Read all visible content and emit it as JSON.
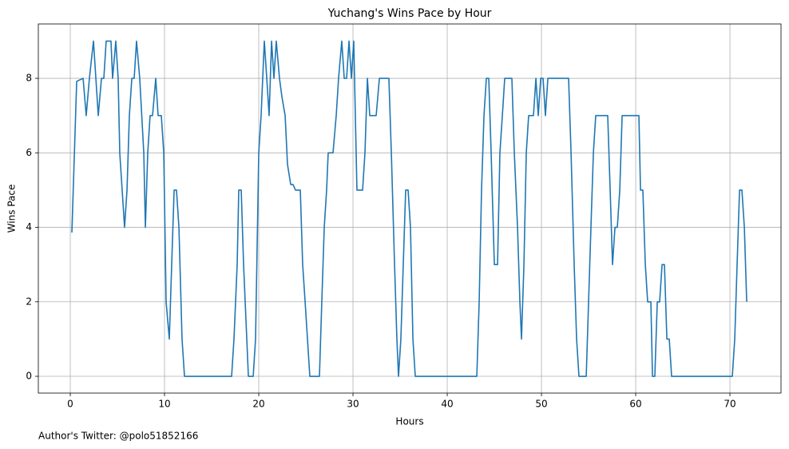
{
  "chart_data": {
    "type": "line",
    "title": "Yuchang's Wins Pace by Hour",
    "x_label": "Hours",
    "y_label": "Wins Pace",
    "footnote": "Author's Twitter: @polo51852166",
    "color": "#1f77b4",
    "grid": true,
    "x": [
      0.17,
      0.68,
      1.36,
      1.69,
      2.03,
      2.46,
      2.97,
      3.31,
      3.56,
      3.81,
      4.32,
      4.49,
      4.83,
      5.08,
      5.25,
      5.76,
      6.02,
      6.27,
      6.53,
      6.78,
      7.03,
      7.37,
      7.8,
      7.97,
      8.22,
      8.47,
      8.73,
      9.07,
      9.32,
      9.66,
      9.92,
      10.17,
      10.51,
      10.76,
      11.02,
      11.27,
      11.53,
      11.86,
      12.12,
      17.12,
      17.37,
      17.71,
      17.88,
      18.14,
      18.39,
      18.73,
      18.9,
      19.41,
      19.66,
      20.0,
      20.25,
      20.59,
      20.85,
      21.1,
      21.36,
      21.61,
      21.86,
      22.2,
      22.46,
      22.8,
      23.05,
      23.39,
      23.64,
      23.9,
      24.41,
      24.66,
      24.92,
      25.17,
      25.42,
      26.44,
      26.69,
      26.95,
      27.2,
      27.37,
      27.88,
      28.22,
      28.47,
      28.81,
      29.07,
      29.32,
      29.58,
      29.83,
      30.08,
      30.42,
      31.02,
      31.27,
      31.53,
      31.78,
      32.46,
      32.8,
      33.81,
      34.07,
      34.41,
      34.66,
      34.83,
      35.08,
      35.59,
      35.85,
      36.1,
      36.36,
      36.61,
      43.14,
      43.39,
      43.64,
      43.9,
      44.15,
      44.41,
      44.66,
      45.0,
      45.34,
      45.59,
      45.85,
      46.1,
      46.86,
      47.12,
      47.46,
      47.71,
      47.88,
      48.14,
      48.39,
      48.64,
      49.15,
      49.41,
      49.66,
      49.92,
      50.17,
      50.42,
      50.68,
      52.88,
      53.14,
      53.47,
      53.73,
      53.98,
      54.75,
      55.0,
      55.25,
      55.51,
      55.76,
      57.03,
      57.29,
      57.54,
      57.8,
      58.05,
      58.31,
      58.56,
      60.34,
      60.51,
      60.76,
      61.02,
      61.27,
      61.61,
      61.78,
      62.03,
      62.29,
      62.54,
      62.8,
      63.05,
      63.31,
      63.56,
      63.81,
      70.25,
      70.51,
      70.76,
      71.02,
      71.27,
      71.53,
      71.78
    ],
    "values": [
      3.86,
      7.92,
      8,
      7,
      8,
      9,
      7,
      8,
      8,
      9,
      9,
      8,
      9,
      8,
      6,
      4,
      5,
      7,
      8,
      8,
      9,
      8,
      6,
      4,
      6,
      7,
      7,
      8,
      7,
      7,
      6,
      2,
      1,
      3,
      5,
      5,
      4,
      1,
      0,
      0,
      1,
      3,
      5,
      5,
      3,
      1,
      0,
      0,
      1,
      6,
      7,
      9,
      8,
      7,
      9,
      8,
      9,
      8,
      7.5,
      7,
      5.69,
      5.15,
      5.15,
      5,
      5,
      3,
      2,
      1,
      0,
      0,
      2,
      4,
      5,
      6,
      6,
      7,
      8,
      9,
      8,
      8,
      9,
      8,
      9,
      5,
      5,
      6,
      8,
      7,
      7,
      8,
      8,
      6,
      3,
      1,
      0,
      1,
      5,
      5,
      4,
      1,
      0,
      0,
      2,
      5,
      7,
      8,
      8,
      6,
      3,
      3,
      6,
      7,
      8,
      8,
      6,
      4,
      2,
      1,
      3,
      6,
      7,
      7,
      8,
      7,
      8,
      8,
      7,
      8,
      8,
      6,
      3,
      1,
      0,
      0,
      2,
      4,
      6,
      7,
      7,
      5,
      3,
      4,
      4,
      5,
      7,
      7,
      5,
      5,
      3,
      2,
      2,
      0,
      0,
      2,
      2,
      3,
      3,
      1,
      1,
      0,
      0,
      1,
      3,
      5,
      5,
      4,
      2
    ],
    "xlim": [
      -3.39,
      75.42
    ],
    "ylim": [
      -0.45,
      9.46
    ],
    "xticks": [
      0,
      10,
      20,
      30,
      40,
      50,
      60,
      70
    ],
    "yticks": [
      0,
      2,
      4,
      6,
      8
    ]
  }
}
